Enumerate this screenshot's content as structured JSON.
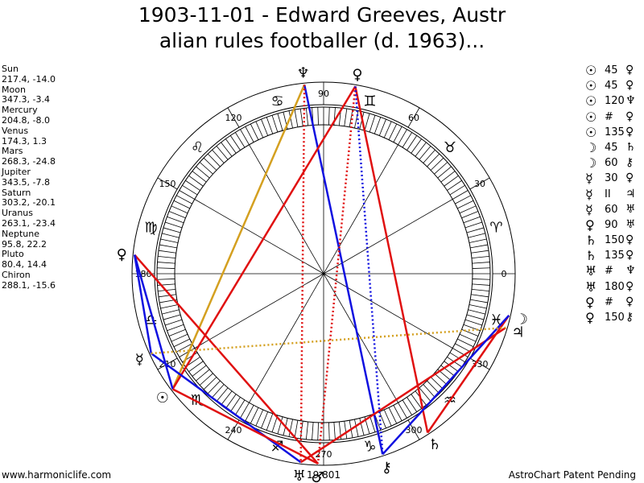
{
  "title": {
    "line1": "1903-11-01 - Edward Greeves, Austr",
    "line2": "alian rules footballer (d. 1963)..."
  },
  "planets": [
    {
      "name": "Sun",
      "coords": "217.4, -14.0"
    },
    {
      "name": "Moon",
      "coords": "347.3, -3.4"
    },
    {
      "name": "Mercury",
      "coords": "204.8, -8.0"
    },
    {
      "name": "Venus",
      "coords": "174.3, 1.3"
    },
    {
      "name": "Mars",
      "coords": "268.3, -24.8"
    },
    {
      "name": "Jupiter",
      "coords": "343.5, -7.8"
    },
    {
      "name": "Saturn",
      "coords": "303.2, -20.1"
    },
    {
      "name": "Uranus",
      "coords": "263.1, -23.4"
    },
    {
      "name": "Neptune",
      "coords": "95.8, 22.2"
    },
    {
      "name": "Pluto",
      "coords": "80.4, 14.4"
    },
    {
      "name": "Chiron",
      "coords": "288.1, -15.6"
    }
  ],
  "aspects": [
    {
      "p1": "☉",
      "angle": "45",
      "p2": "♀"
    },
    {
      "p1": "☉",
      "angle": "45",
      "p2": "♀"
    },
    {
      "p1": "☉",
      "angle": "120",
      "p2": "♆"
    },
    {
      "p1": "☉",
      "angle": "#",
      "p2": "♀"
    },
    {
      "p1": "☉",
      "angle": "135",
      "p2": "♀"
    },
    {
      "p1": "☽",
      "angle": "45",
      "p2": "♄"
    },
    {
      "p1": "☽",
      "angle": "60",
      "p2": "⚷"
    },
    {
      "p1": "☿",
      "angle": "30",
      "p2": "♀"
    },
    {
      "p1": "☿",
      "angle": "II",
      "p2": "♃"
    },
    {
      "p1": "☿",
      "angle": "60",
      "p2": "♅"
    },
    {
      "p1": "♀",
      "angle": "90",
      "p2": "♅"
    },
    {
      "p1": "♄",
      "angle": "150",
      "p2": "♀"
    },
    {
      "p1": "♄",
      "angle": "135",
      "p2": "♀"
    },
    {
      "p1": "♅",
      "angle": "#",
      "p2": "♆"
    },
    {
      "p1": "♅",
      "angle": "180",
      "p2": "♀"
    },
    {
      "p1": "♀",
      "angle": "#",
      "p2": "♀"
    },
    {
      "p1": "♀",
      "angle": "150",
      "p2": "⚷"
    }
  ],
  "wheel": {
    "degree_labels": [
      "0",
      "30",
      "60",
      "90",
      "120",
      "150",
      "180",
      "210",
      "240",
      "270",
      "300",
      "330"
    ],
    "signs": [
      "♈",
      "♉",
      "♊",
      "♋",
      "♌",
      "♍",
      "♎",
      "♏",
      "♐",
      "♑",
      "♒",
      "♓"
    ],
    "bottom_readout": "19,801",
    "chart_glyphs": [
      {
        "name": "sun",
        "glyph": "☉",
        "lon": 217.4
      },
      {
        "name": "moon",
        "glyph": "☽",
        "lon": 347.3
      },
      {
        "name": "mercury",
        "glyph": "☿",
        "lon": 204.8
      },
      {
        "name": "venus",
        "glyph": "♀",
        "lon": 174.3
      },
      {
        "name": "mars",
        "glyph": "♂",
        "lon": 268.3
      },
      {
        "name": "jupiter",
        "glyph": "♃",
        "lon": 343.5
      },
      {
        "name": "saturn",
        "glyph": "♄",
        "lon": 303.2
      },
      {
        "name": "uranus",
        "glyph": "♅",
        "lon": 263.1
      },
      {
        "name": "neptune",
        "glyph": "♆",
        "lon": 95.8
      },
      {
        "name": "pluto",
        "glyph": "♀",
        "lon": 80.4
      },
      {
        "name": "chiron",
        "glyph": "⚷",
        "lon": 288.1
      }
    ],
    "aspect_lines": [
      {
        "from": 95.8,
        "to": 217.4,
        "color": "#d4a020",
        "style": "solid"
      },
      {
        "from": 95.8,
        "to": 288.1,
        "color": "#1010e0",
        "style": "solid"
      },
      {
        "from": 80.4,
        "to": 217.4,
        "color": "#e01010",
        "style": "solid"
      },
      {
        "from": 80.4,
        "to": 303.2,
        "color": "#e01010",
        "style": "solid"
      },
      {
        "from": 80.4,
        "to": 268.3,
        "color": "#e01010",
        "style": "dotted"
      },
      {
        "from": 174.3,
        "to": 268.3,
        "color": "#e01010",
        "style": "solid"
      },
      {
        "from": 174.3,
        "to": 217.4,
        "color": "#1010e0",
        "style": "solid"
      },
      {
        "from": 174.3,
        "to": 204.8,
        "color": "#1010e0",
        "style": "solid"
      },
      {
        "from": 204.8,
        "to": 263.1,
        "color": "#1010e0",
        "style": "solid"
      },
      {
        "from": 217.4,
        "to": 268.3,
        "color": "#e01010",
        "style": "solid"
      },
      {
        "from": 263.1,
        "to": 343.5,
        "color": "#e01010",
        "style": "solid"
      },
      {
        "from": 303.2,
        "to": 347.3,
        "color": "#e01010",
        "style": "solid"
      },
      {
        "from": 288.1,
        "to": 347.3,
        "color": "#1010e0",
        "style": "solid"
      },
      {
        "from": 204.8,
        "to": 343.5,
        "color": "#d4a020",
        "style": "dotted"
      },
      {
        "from": 95.8,
        "to": 263.1,
        "color": "#e01010",
        "style": "dotted"
      },
      {
        "from": 80.4,
        "to": 288.1,
        "color": "#1010e0",
        "style": "dotted"
      }
    ]
  },
  "footer": {
    "left": "www.harmoniclife.com",
    "right": "AstroChart Patent Pending"
  }
}
